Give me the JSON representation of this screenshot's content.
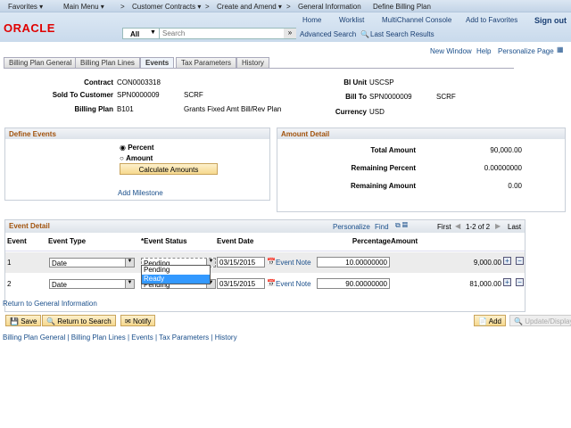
{
  "nav": {
    "items": [
      "Favorites ▾",
      "Main Menu ▾",
      ">",
      "Customer Contracts ▾",
      ">",
      "Create and Amend ▾",
      ">",
      "General Information",
      "Define Billing Plan"
    ]
  },
  "header": {
    "logo": "ORACLE",
    "links": [
      "Home",
      "Worklist",
      "MultiChannel Console",
      "Add to Favorites",
      "Sign out"
    ],
    "search_scope": "All",
    "search_placeholder": "Search",
    "advanced_search": "Advanced Search",
    "last_results": "Last Search Results"
  },
  "toolbar": {
    "links": [
      "New Window",
      "Help",
      "Personalize Page"
    ]
  },
  "tabs": [
    "Billing Plan General",
    "Billing Plan Lines",
    "Events",
    "Tax Parameters",
    "History"
  ],
  "fields": {
    "contract_label": "Contract",
    "contract": "CON0003318",
    "bi_unit_label": "BI Unit",
    "bi_unit": "USCSP",
    "sold_to_label": "Sold To Customer",
    "sold_to": "SPN0000009",
    "sold_to_name": "SCRF",
    "bill_to_label": "Bill To",
    "bill_to": "SPN0000009",
    "bill_to_name": "SCRF",
    "billing_plan_label": "Billing Plan",
    "billing_plan": "B101",
    "billing_plan_desc": "Grants Fixed Amt Bill/Rev Plan",
    "currency_label": "Currency",
    "currency": "USD"
  },
  "define_events": {
    "title": "Define Events",
    "percent": "Percent",
    "amount": "Amount",
    "selected": "Percent",
    "calc": "Calculate Amounts",
    "add_milestone": "Add Milestone"
  },
  "amount_detail": {
    "title": "Amount Detail",
    "total_label": "Total Amount",
    "total": "90,000.00",
    "rem_pct_label": "Remaining Percent",
    "rem_pct": "0.00000000",
    "rem_amt_label": "Remaining Amount",
    "rem_amt": "0.00"
  },
  "grid": {
    "title": "Event Detail",
    "personalize": "Personalize",
    "find": "Find",
    "first": "First",
    "range": "1-2 of 2",
    "last": "Last",
    "headers": [
      "Event",
      "Event Type",
      "*Event Status",
      "Event Date",
      "",
      "Percentage",
      "Amount"
    ],
    "rows": [
      {
        "event": "1",
        "type": "Date",
        "status": "Pending",
        "date": "03/15/2015",
        "note": "Event Note",
        "pct": "10.00000000",
        "amount": "9,000.00"
      },
      {
        "event": "2",
        "type": "Date",
        "status": "Pending",
        "date": "03/15/2015",
        "note": "Event Note",
        "pct": "90.00000000",
        "amount": "81,000.00"
      }
    ],
    "dropdown": [
      "Pending",
      "Ready"
    ],
    "dropdown_highlight": "Ready"
  },
  "return_link": "Return to General Information",
  "buttons": {
    "save": "Save",
    "return": "Return to Search",
    "notify": "Notify",
    "add": "Add",
    "update": "Update/Display"
  },
  "footer_links": [
    "Billing Plan General",
    "Billing Plan Lines",
    "Events",
    "Tax Parameters",
    "History"
  ]
}
